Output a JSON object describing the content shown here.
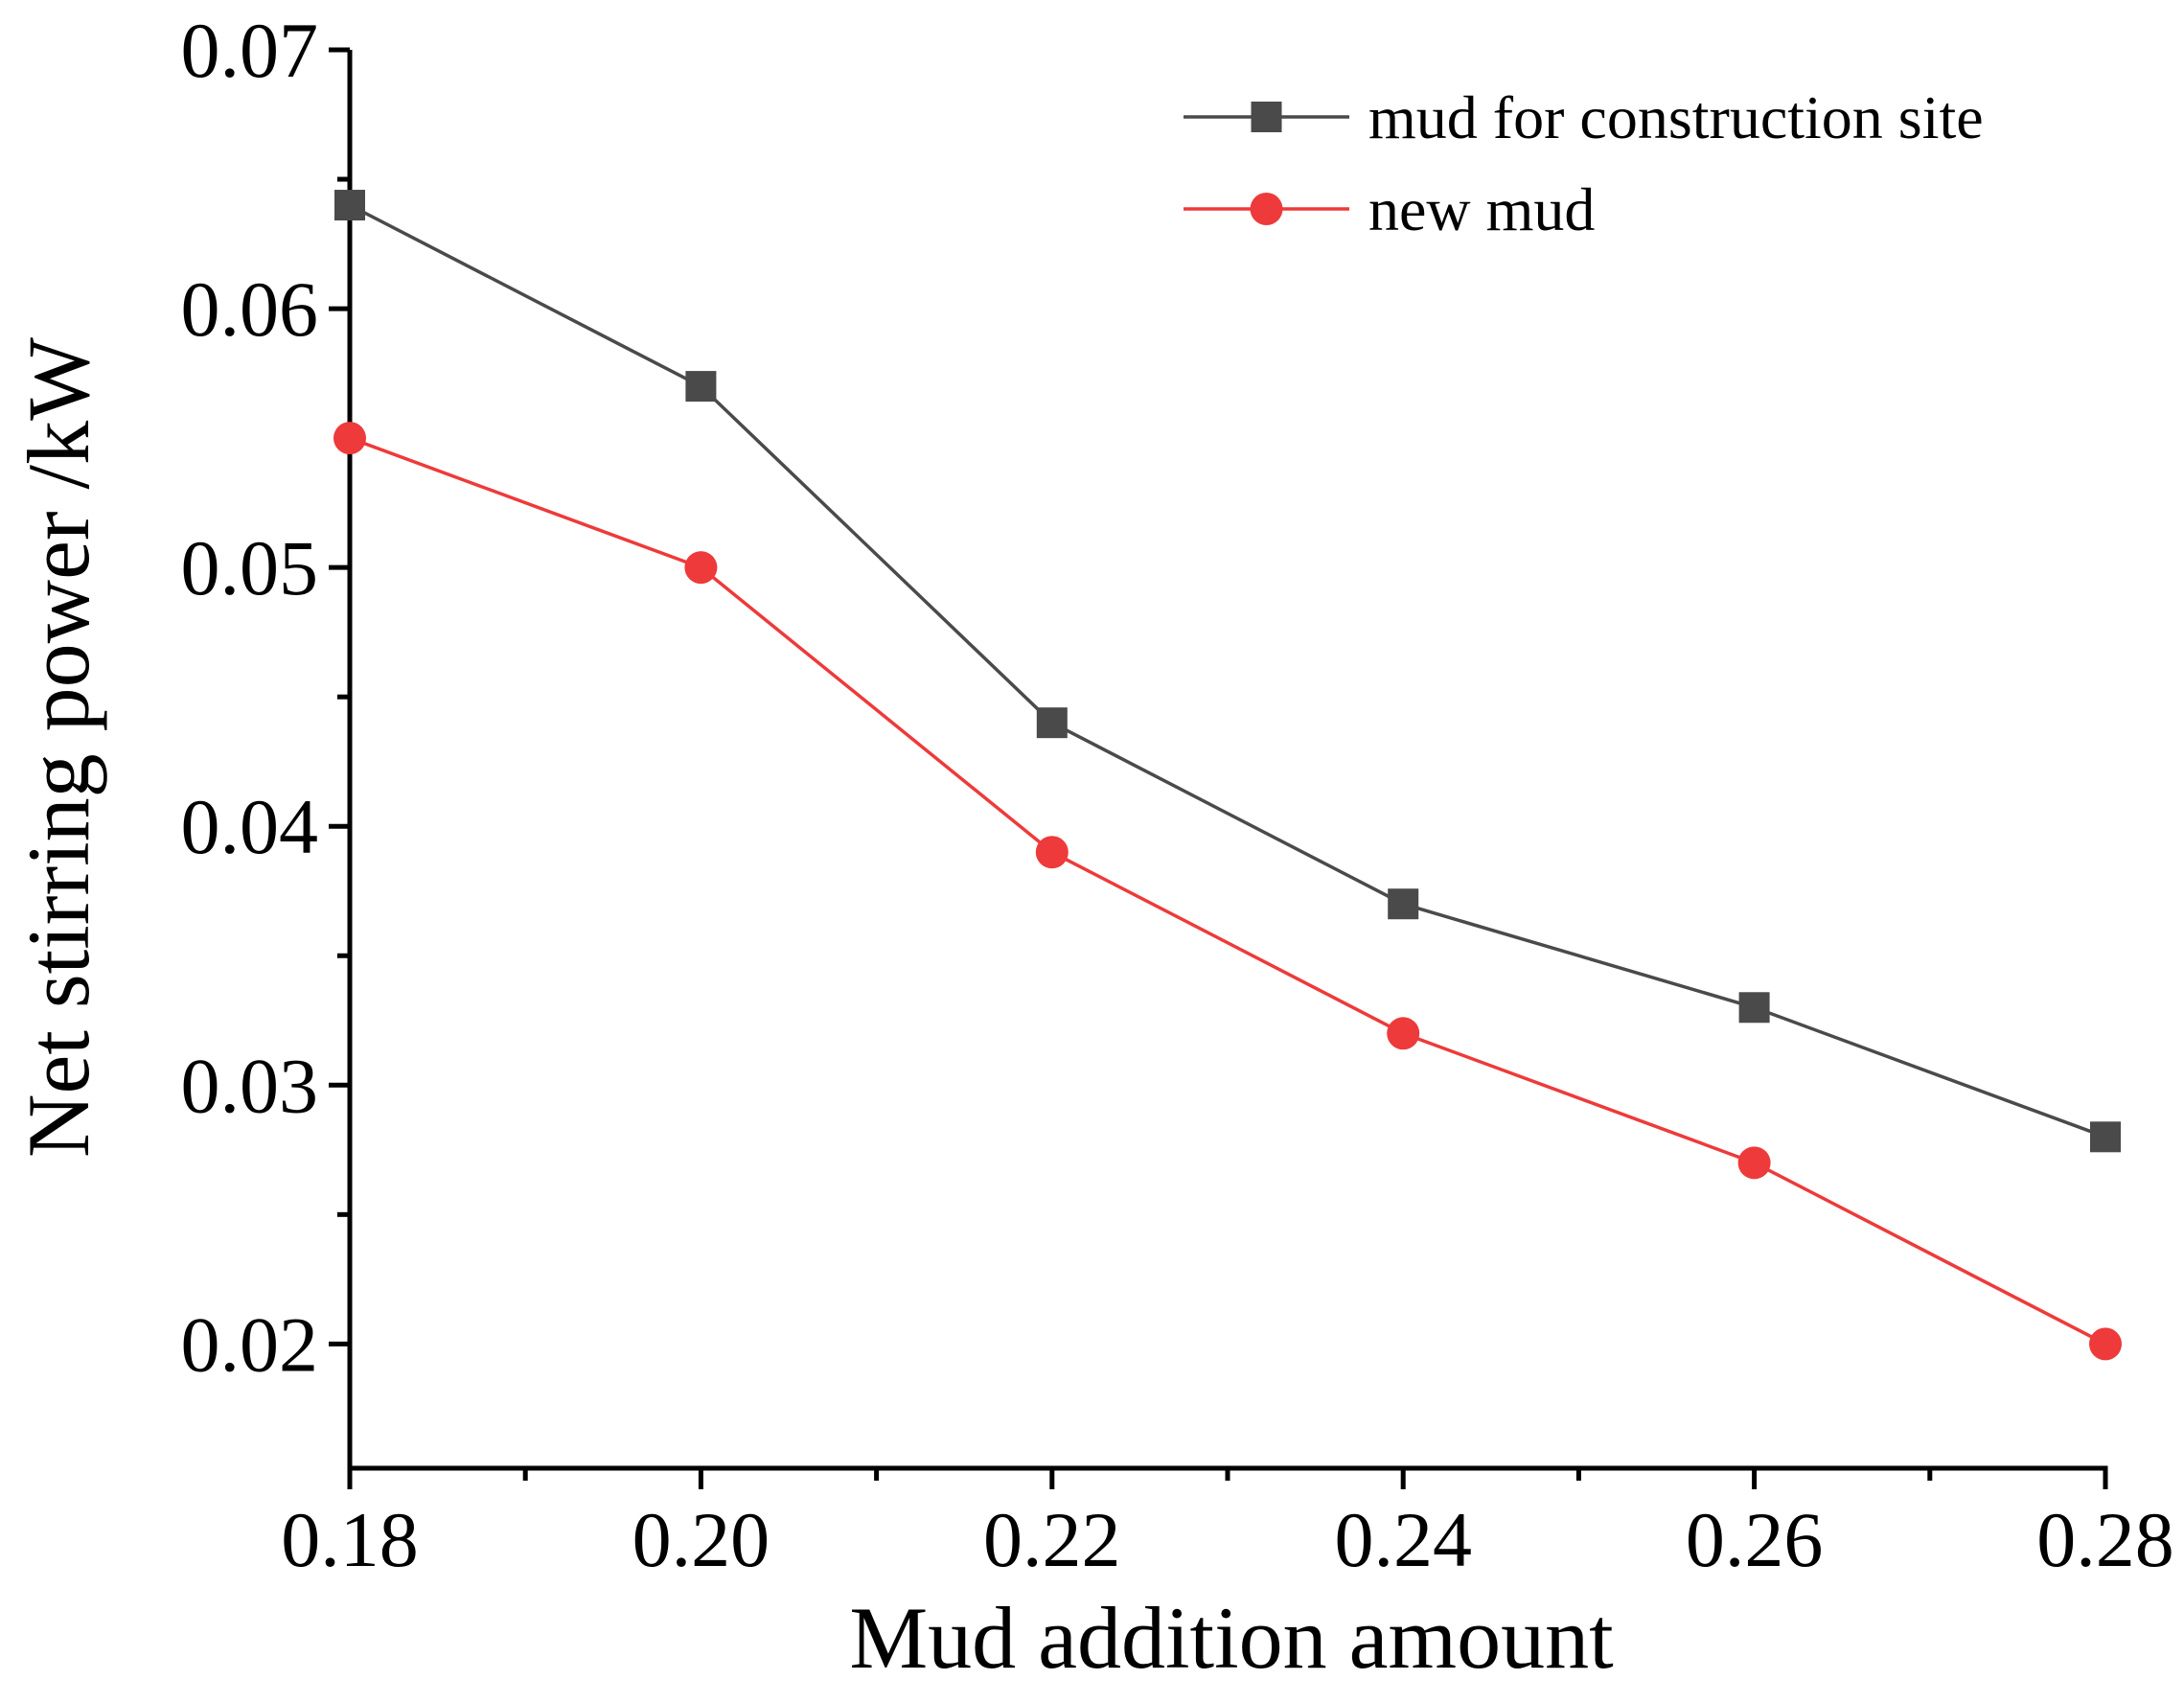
{
  "chart_data": {
    "type": "line",
    "title": "",
    "xlabel": "Mud addition amount",
    "ylabel": "Net stirring power /kW",
    "xlim": [
      0.18,
      0.28
    ],
    "ylim": [
      0.0152,
      0.07
    ],
    "x_ticks": [
      "0.18",
      "0.20",
      "0.22",
      "0.24",
      "0.26",
      "0.28"
    ],
    "y_ticks": [
      "0.02",
      "0.03",
      "0.04",
      "0.05",
      "0.06",
      "0.07"
    ],
    "x": [
      0.18,
      0.2,
      0.22,
      0.24,
      0.26,
      0.28
    ],
    "series": [
      {
        "name": "mud for construction site",
        "values": [
          0.064,
          0.057,
          0.044,
          0.037,
          0.033,
          0.028
        ],
        "color": "#4a4a4a",
        "marker": "square"
      },
      {
        "name": "new mud",
        "values": [
          0.055,
          0.05,
          0.039,
          0.032,
          0.027,
          0.02
        ],
        "color": "#ee3a3a",
        "marker": "circle"
      }
    ],
    "legend": "top-right",
    "grid": false
  }
}
